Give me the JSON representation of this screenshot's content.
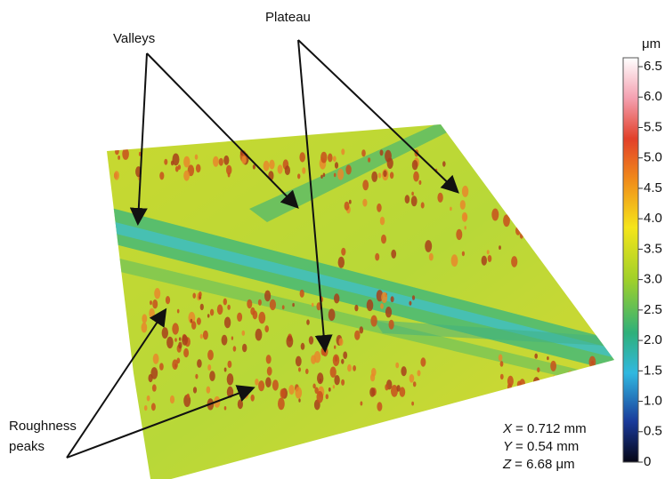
{
  "annotations": {
    "valleys": "Valleys",
    "plateau": "Plateau",
    "roughness_peaks": [
      "Roughness",
      "peaks"
    ]
  },
  "colorbar": {
    "unit": "μm",
    "ticks": [
      "6.5",
      "6.0",
      "5.5",
      "5.0",
      "4.5",
      "4.0",
      "3.5",
      "3.0",
      "2.5",
      "2.0",
      "1.5",
      "1.0",
      "0.5",
      "0"
    ]
  },
  "dimensions": [
    {
      "axis": "X",
      "text": "= 0.712 mm"
    },
    {
      "axis": "Y",
      "text": "= 0.54 mm"
    },
    {
      "axis": "Z",
      "text": "= 6.68 μm"
    }
  ]
}
